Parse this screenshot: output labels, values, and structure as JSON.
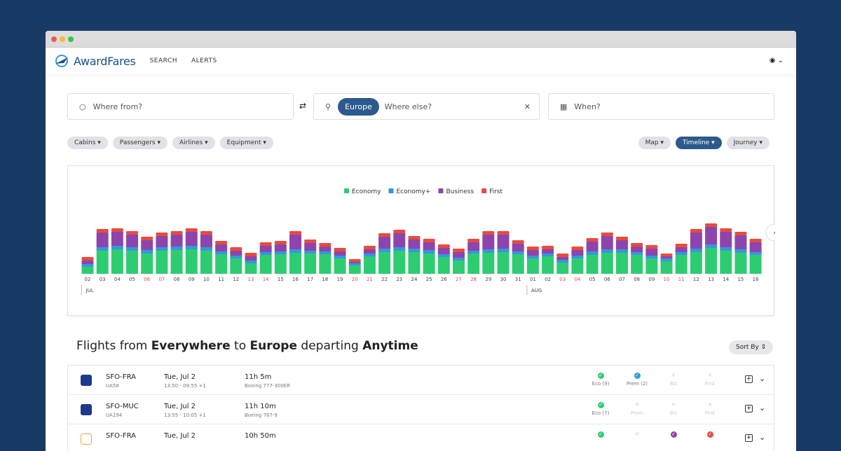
{
  "header": {
    "brand": "AwardFares",
    "nav": [
      "SEARCH",
      "ALERTS"
    ]
  },
  "search": {
    "from_placeholder": "Where from?",
    "to_chip": "Europe",
    "to_placeholder": "Where else?",
    "when_placeholder": "When?"
  },
  "filters": {
    "left": [
      "Cabins",
      "Passengers",
      "Airlines",
      "Equipment"
    ],
    "right": [
      "Map",
      "Timeline",
      "Journey"
    ],
    "active": "Timeline"
  },
  "chart_data": {
    "type": "stacked_bar",
    "categories": [
      "02",
      "03",
      "04",
      "05",
      "06",
      "07",
      "08",
      "09",
      "10",
      "11",
      "12",
      "13",
      "14",
      "15",
      "16",
      "17",
      "18",
      "19",
      "20",
      "21",
      "22",
      "23",
      "24",
      "25",
      "26",
      "27",
      "28",
      "29",
      "30",
      "31",
      "01",
      "02",
      "03",
      "04",
      "05",
      "06",
      "07",
      "08",
      "09",
      "10",
      "11",
      "12",
      "13",
      "14",
      "15",
      "16"
    ],
    "weekends": [
      4,
      5,
      11,
      12,
      18,
      19,
      25,
      26,
      32,
      33,
      39,
      40
    ],
    "weekend_color": "#e74c3c",
    "months": [
      {
        "label": "JUL",
        "start": 0
      },
      {
        "label": "AUG",
        "start": 30
      }
    ],
    "ylim": [
      0,
      80
    ],
    "series": [
      {
        "name": "Economy",
        "color": "#2ecc71",
        "values": [
          10,
          33,
          35,
          33,
          29,
          33,
          34,
          35,
          33,
          28,
          22,
          15,
          27,
          28,
          30,
          29,
          28,
          22,
          12,
          25,
          31,
          33,
          31,
          29,
          24,
          19,
          29,
          30,
          31,
          28,
          22,
          25,
          16,
          22,
          27,
          30,
          30,
          27,
          22,
          18,
          27,
          31,
          37,
          33,
          30,
          27
        ]
      },
      {
        "name": "Economy+",
        "color": "#3498db",
        "values": [
          4,
          5,
          5,
          5,
          5,
          5,
          5,
          5,
          5,
          4,
          4,
          4,
          4,
          4,
          5,
          4,
          4,
          4,
          3,
          4,
          5,
          5,
          5,
          5,
          4,
          4,
          4,
          5,
          5,
          4,
          4,
          4,
          4,
          4,
          5,
          5,
          5,
          4,
          4,
          4,
          4,
          5,
          5,
          5,
          5,
          4
        ]
      },
      {
        "name": "Business",
        "color": "#8e44ad",
        "values": [
          5,
          21,
          20,
          18,
          14,
          16,
          17,
          20,
          18,
          10,
          7,
          6,
          9,
          10,
          21,
          11,
          7,
          6,
          2,
          6,
          17,
          20,
          13,
          11,
          9,
          8,
          12,
          21,
          20,
          11,
          8,
          6,
          4,
          8,
          14,
          19,
          13,
          8,
          10,
          3,
          7,
          23,
          25,
          22,
          20,
          14
        ]
      },
      {
        "name": "First",
        "color": "#e74c3c",
        "values": [
          5,
          5,
          5,
          5,
          5,
          5,
          5,
          5,
          5,
          5,
          5,
          5,
          5,
          5,
          5,
          5,
          5,
          5,
          4,
          5,
          5,
          5,
          5,
          5,
          5,
          5,
          5,
          5,
          5,
          5,
          5,
          5,
          5,
          5,
          5,
          5,
          5,
          5,
          5,
          4,
          5,
          5,
          5,
          5,
          5,
          5
        ]
      }
    ]
  },
  "results": {
    "heading": [
      "Flights from ",
      "Everywhere",
      " to ",
      "Europe",
      " departing ",
      "Anytime"
    ],
    "sort": "Sort By",
    "rows": [
      {
        "route": "SFO-FRA",
        "flight": "UA58",
        "date": "Tue, Jul 2",
        "times": "13:50 - 09:55 +1",
        "duration": "11h 5m",
        "aircraft": "Boeing 777-300ER",
        "cabins": [
          {
            "label": "Eco (9)",
            "available": true
          },
          {
            "label": "Prem (2)",
            "available": true
          },
          {
            "label": "Biz",
            "available": false
          },
          {
            "label": "First",
            "available": false
          }
        ]
      },
      {
        "route": "SFO-MUC",
        "flight": "UA194",
        "date": "Tue, Jul 2",
        "times": "13:55 - 10:05 +1",
        "duration": "11h 10m",
        "aircraft": "Boeing 787-9",
        "cabins": [
          {
            "label": "Eco (7)",
            "available": true
          },
          {
            "label": "Prem",
            "available": false
          },
          {
            "label": "Biz",
            "available": false
          },
          {
            "label": "First",
            "available": false
          }
        ]
      },
      {
        "route": "SFO-FRA",
        "date": "Tue, Jul 2",
        "duration": "10h 50m",
        "cabins": [
          {
            "available": true
          },
          {
            "available": false
          },
          {
            "available": true
          },
          {
            "available": true
          }
        ]
      }
    ]
  }
}
